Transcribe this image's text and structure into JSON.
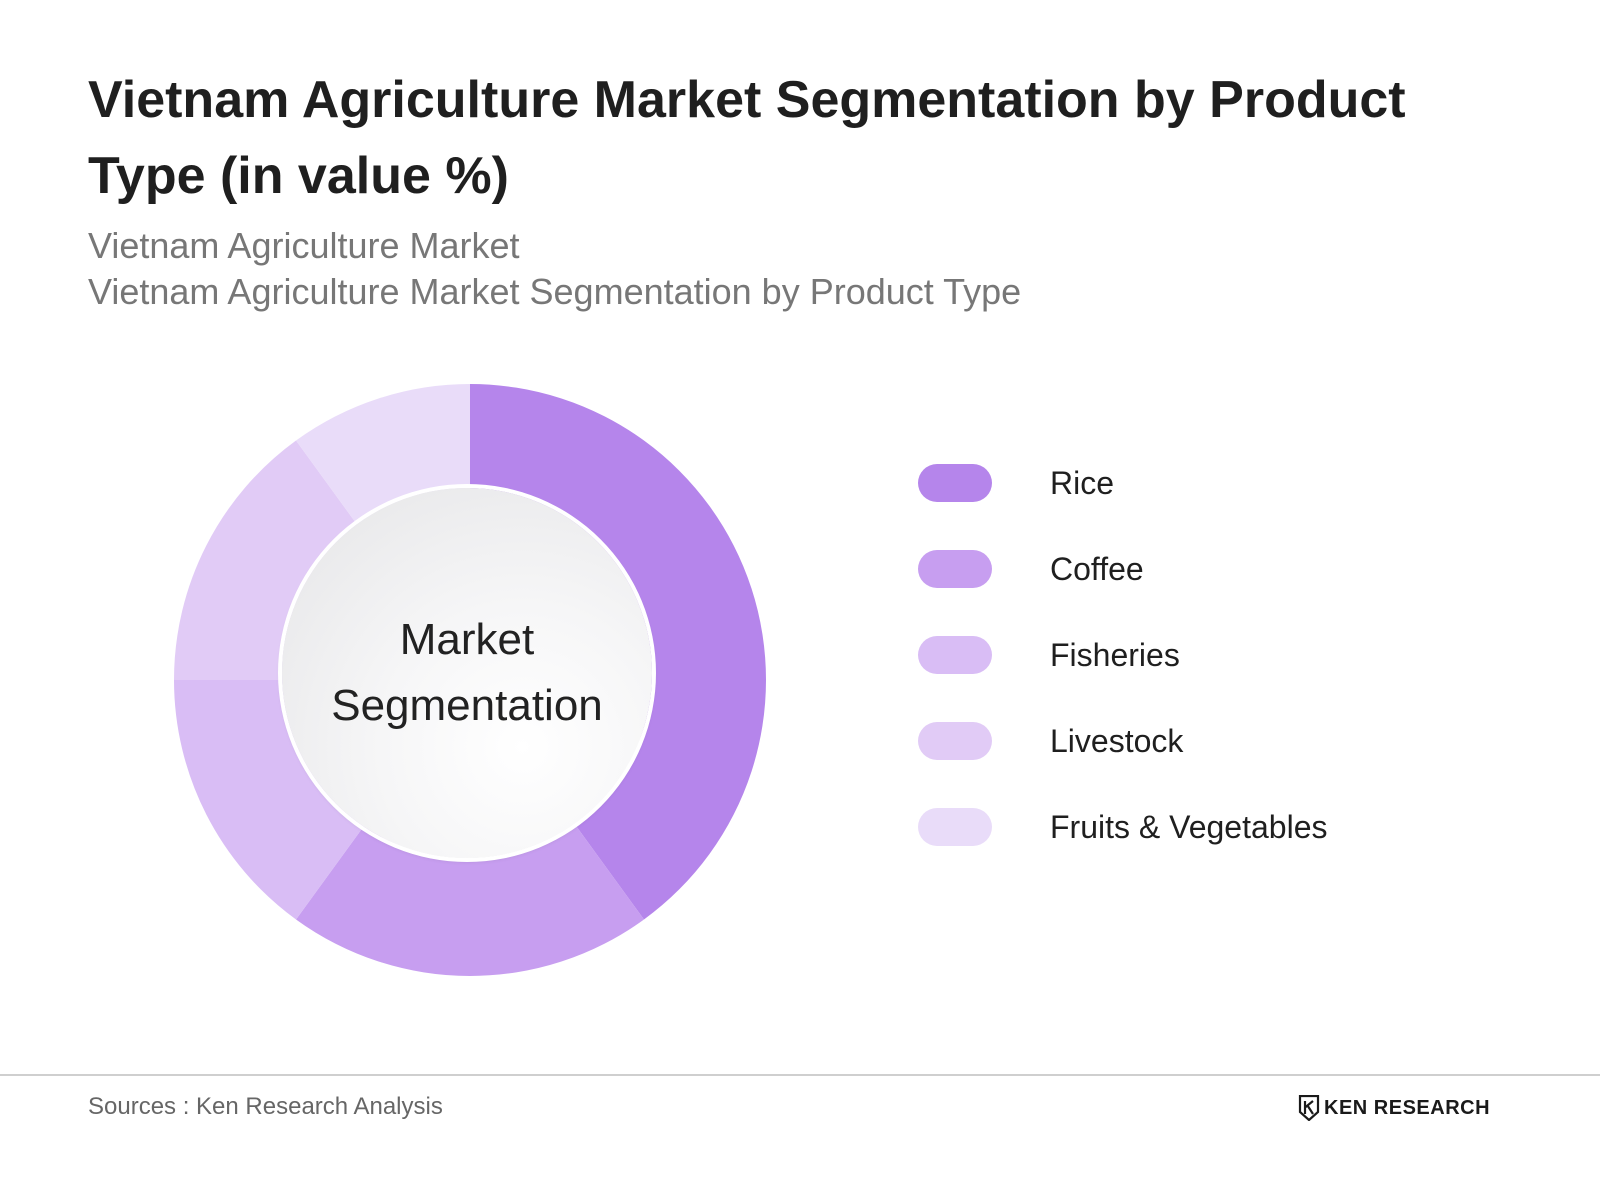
{
  "title": "Vietnam Agriculture Market Segmentation by Product Type (in value %)",
  "subtitles": [
    "Vietnam Agriculture Market",
    "Vietnam Agriculture Market Segmentation by Product Type"
  ],
  "center_label": "Market Segmentation",
  "chart_data": {
    "type": "pie",
    "style": "donut",
    "categories": [
      "Rice",
      "Coffee",
      "Fisheries",
      "Livestock",
      "Fruits & Vegetables"
    ],
    "values": [
      40,
      20,
      15,
      15,
      10
    ],
    "colors": [
      "#b585eb",
      "#c79ef0",
      "#d9bdf5",
      "#e1cbf6",
      "#e9dcf9"
    ],
    "legend_position": "right"
  },
  "footer": {
    "source": "Sources : Ken Research Analysis",
    "brand": "KEN RESEARCH"
  }
}
